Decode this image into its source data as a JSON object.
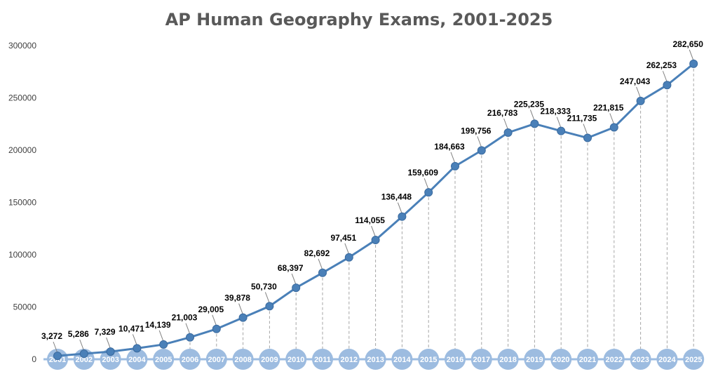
{
  "chart_data": {
    "type": "line",
    "title": "AP Human Geography Exams, 2001-2025",
    "xlabel": "",
    "ylabel": "",
    "ylim": [
      0,
      300000
    ],
    "yticks": [
      0,
      50000,
      100000,
      150000,
      200000,
      250000,
      300000
    ],
    "ytick_labels": [
      "0",
      "50000",
      "100000",
      "150000",
      "200000",
      "250000",
      "300000"
    ],
    "categories": [
      "2001",
      "2002",
      "2003",
      "2004",
      "2005",
      "2006",
      "2007",
      "2008",
      "2009",
      "2010",
      "2011",
      "2012",
      "2013",
      "2014",
      "2015",
      "2016",
      "2017",
      "2018",
      "2019",
      "2020",
      "2021",
      "2022",
      "2023",
      "2024",
      "2025"
    ],
    "values": [
      3272,
      5286,
      7329,
      10471,
      14139,
      21003,
      29005,
      39878,
      50730,
      68397,
      82692,
      97451,
      114055,
      136448,
      159609,
      184663,
      199756,
      216783,
      225235,
      218333,
      211735,
      221815,
      247043,
      262253,
      282650
    ],
    "data_labels": [
      "3,272",
      "5,286",
      "7,329",
      "10,471",
      "14,139",
      "21,003",
      "29,005",
      "39,878",
      "50,730",
      "68,397",
      "82,692",
      "97,451",
      "114,055",
      "136,448",
      "159,609",
      "184,663",
      "199,756",
      "216,783",
      "225,235",
      "218,333",
      "211,735",
      "221,815",
      "247,043",
      "262,253",
      "282,650"
    ],
    "grid": false,
    "legend": "none",
    "colors": {
      "line": "#4a80b8",
      "marker": "#4a80b8",
      "axis_band": "#9dbce0",
      "drop_line": "#a6a6a6",
      "title": "#595959"
    }
  }
}
